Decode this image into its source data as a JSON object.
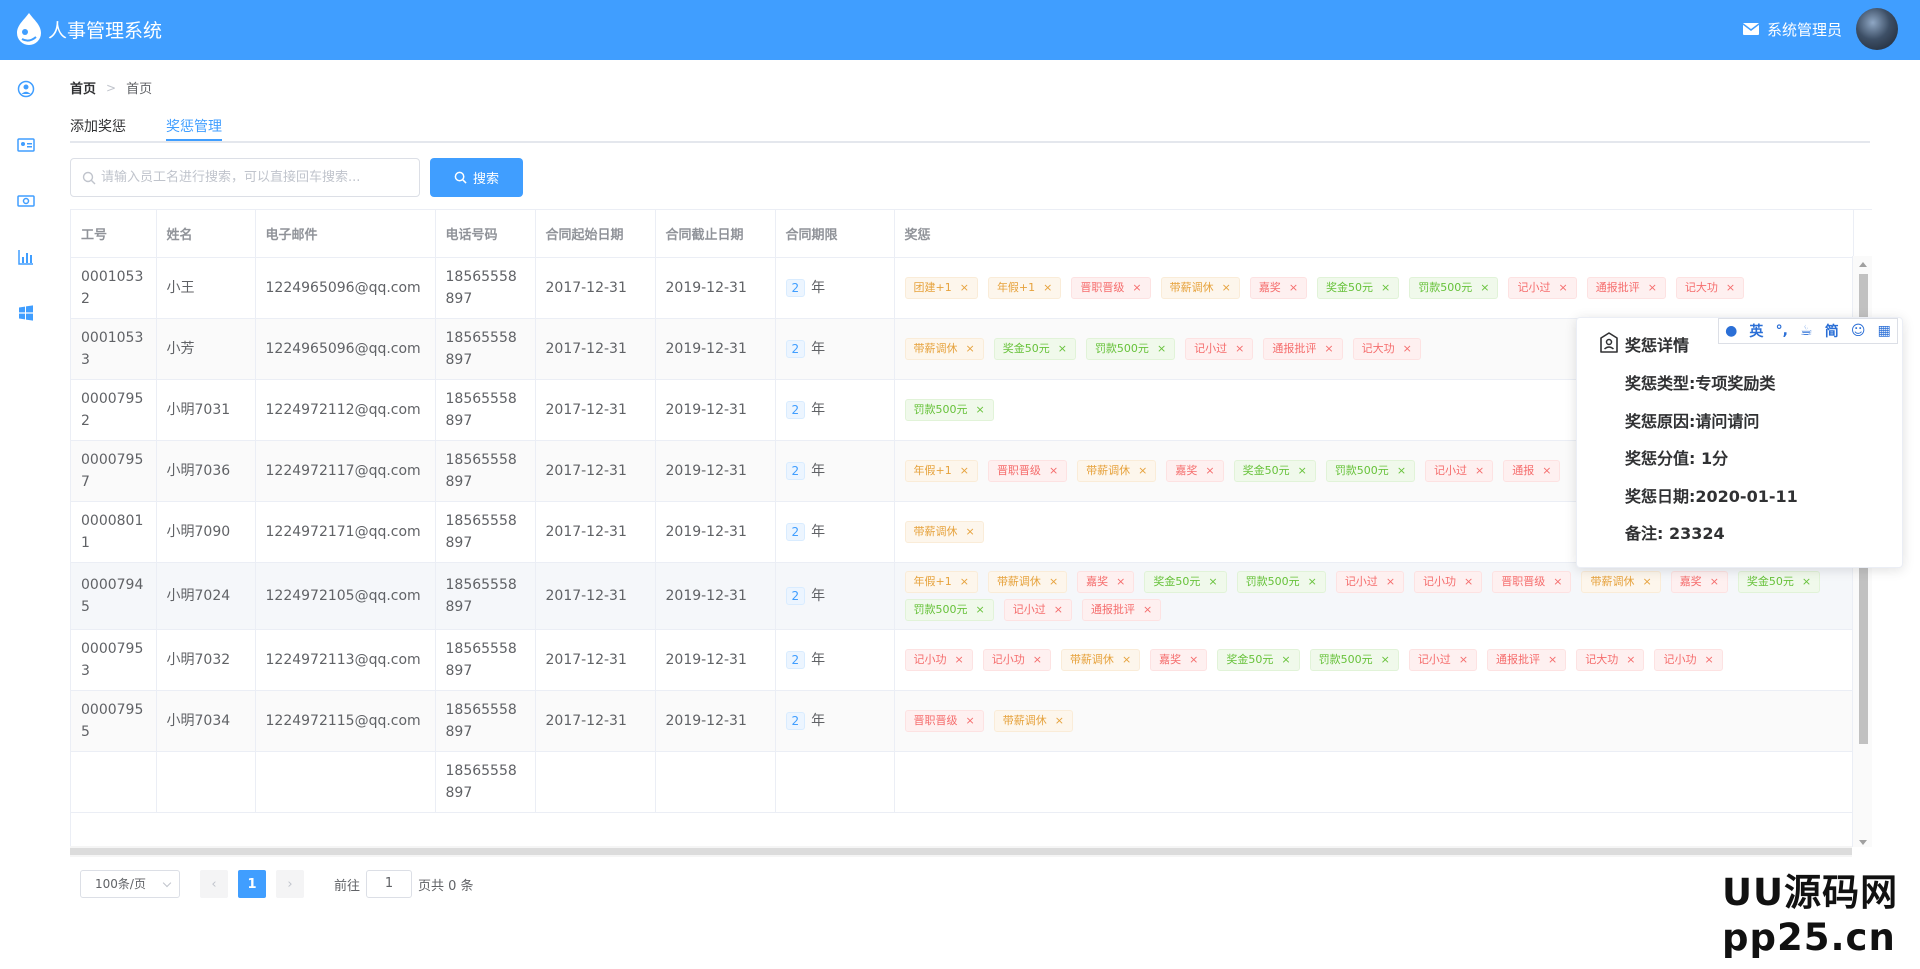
{
  "app": {
    "title": "人事管理系统",
    "user_name": "系统管理员"
  },
  "breadcrumb": {
    "home": "首页",
    "current": "首页"
  },
  "tabs": [
    {
      "label": "添加奖惩"
    },
    {
      "label": "奖惩管理"
    }
  ],
  "search": {
    "placeholder": "请输入员工名进行搜索，可以直接回车搜索...",
    "button_label": "搜索"
  },
  "table": {
    "headers": [
      "工号",
      "姓名",
      "电子邮件",
      "电话号码",
      "合同起始日期",
      "合同截止日期",
      "合同期限",
      "奖惩"
    ],
    "period_unit": "年",
    "rows": [
      {
        "id": "00010532",
        "name": "小王",
        "email": "1224965096@qq.com",
        "phone": "18565558897",
        "start": "2017-12-31",
        "end": "2019-12-31",
        "period": "2",
        "tags": [
          [
            "团建+1",
            "warn"
          ],
          [
            "年假+1",
            "warn"
          ],
          [
            "晋职晋级",
            "danger"
          ],
          [
            "带薪调休",
            "warn"
          ],
          [
            "嘉奖",
            "danger"
          ],
          [
            "奖金50元",
            "success"
          ],
          [
            "罚款500元",
            "success"
          ],
          [
            "记小过",
            "danger"
          ],
          [
            "通报批评",
            "danger"
          ],
          [
            "记大功",
            "danger"
          ]
        ]
      },
      {
        "id": "00010533",
        "name": "小芳",
        "email": "1224965096@qq.com",
        "phone": "18565558897",
        "start": "2017-12-31",
        "end": "2019-12-31",
        "period": "2",
        "tags": [
          [
            "带薪调休",
            "warn"
          ],
          [
            "奖金50元",
            "success"
          ],
          [
            "罚款500元",
            "success"
          ],
          [
            "记小过",
            "danger"
          ],
          [
            "通报批评",
            "danger"
          ],
          [
            "记大功",
            "danger"
          ]
        ]
      },
      {
        "id": "00007952",
        "name": "小明7031",
        "email": "1224972112@qq.com",
        "phone": "18565558897",
        "start": "2017-12-31",
        "end": "2019-12-31",
        "period": "2",
        "tags": [
          [
            "罚款500元",
            "success"
          ]
        ]
      },
      {
        "id": "00007957",
        "name": "小明7036",
        "email": "1224972117@qq.com",
        "phone": "18565558897",
        "start": "2017-12-31",
        "end": "2019-12-31",
        "period": "2",
        "tags": [
          [
            "年假+1",
            "warn"
          ],
          [
            "晋职晋级",
            "danger"
          ],
          [
            "带薪调休",
            "warn"
          ],
          [
            "嘉奖",
            "danger"
          ],
          [
            "奖金50元",
            "success"
          ],
          [
            "罚款500元",
            "success"
          ],
          [
            "记小过",
            "danger"
          ],
          [
            "通报",
            "danger"
          ]
        ]
      },
      {
        "id": "00008011",
        "name": "小明7090",
        "email": "1224972171@qq.com",
        "phone": "18565558897",
        "start": "2017-12-31",
        "end": "2019-12-31",
        "period": "2",
        "tags": [
          [
            "带薪调休",
            "warn"
          ]
        ]
      },
      {
        "id": "00007945",
        "name": "小明7024",
        "email": "1224972105@qq.com",
        "phone": "18565558897",
        "start": "2017-12-31",
        "end": "2019-12-31",
        "period": "2",
        "tags": [
          [
            "年假+1",
            "warn"
          ],
          [
            "带薪调休",
            "warn"
          ],
          [
            "嘉奖",
            "danger"
          ],
          [
            "奖金50元",
            "success"
          ],
          [
            "罚款500元",
            "success"
          ],
          [
            "记小过",
            "danger"
          ],
          [
            "记小功",
            "danger"
          ],
          [
            "晋职晋级",
            "danger"
          ],
          [
            "带薪调休",
            "warn"
          ],
          [
            "嘉奖",
            "danger"
          ],
          [
            "奖金50元",
            "success"
          ],
          [
            "罚款500元",
            "success"
          ],
          [
            "记小过",
            "danger"
          ],
          [
            "通报批评",
            "danger"
          ]
        ]
      },
      {
        "id": "00007953",
        "name": "小明7032",
        "email": "1224972113@qq.com",
        "phone": "18565558897",
        "start": "2017-12-31",
        "end": "2019-12-31",
        "period": "2",
        "tags": [
          [
            "记小功",
            "danger"
          ],
          [
            "记小功",
            "danger"
          ],
          [
            "带薪调休",
            "warn"
          ],
          [
            "嘉奖",
            "danger"
          ],
          [
            "奖金50元",
            "success"
          ],
          [
            "罚款500元",
            "success"
          ],
          [
            "记小过",
            "danger"
          ],
          [
            "通报批评",
            "danger"
          ],
          [
            "记大功",
            "danger"
          ],
          [
            "记小功",
            "danger"
          ]
        ]
      },
      {
        "id": "00007955",
        "name": "小明7034",
        "email": "1224972115@qq.com",
        "phone": "18565558897",
        "start": "2017-12-31",
        "end": "2019-12-31",
        "period": "2",
        "tags": [
          [
            "晋职晋级",
            "danger"
          ],
          [
            "带薪调休",
            "warn"
          ]
        ]
      },
      {
        "id": "",
        "name": "",
        "email": "",
        "phone": "18565558897",
        "start": "",
        "end": "",
        "period": "",
        "tags": []
      }
    ]
  },
  "pagination": {
    "page_size": "100条/页",
    "current_page": "1",
    "goto_label": "前往",
    "goto_value": "1",
    "total_label": "页共 0 条"
  },
  "popover": {
    "title": "奖惩详情",
    "lines": [
      "奖惩类型:专项奖励类",
      "奖惩原因:请问请问",
      "奖惩分值: 1分",
      "奖惩日期:2020-01-11",
      "备注: 23324"
    ]
  },
  "ime": {
    "lang": "英",
    "punct": "°,",
    "charset": "简"
  },
  "watermark": {
    "line1": "UU源码网",
    "line2": "pp25.cn"
  },
  "colors": {
    "primary": "#409eff",
    "warning": "#e6a23c",
    "danger": "#f56c6c",
    "success": "#67c23a"
  }
}
